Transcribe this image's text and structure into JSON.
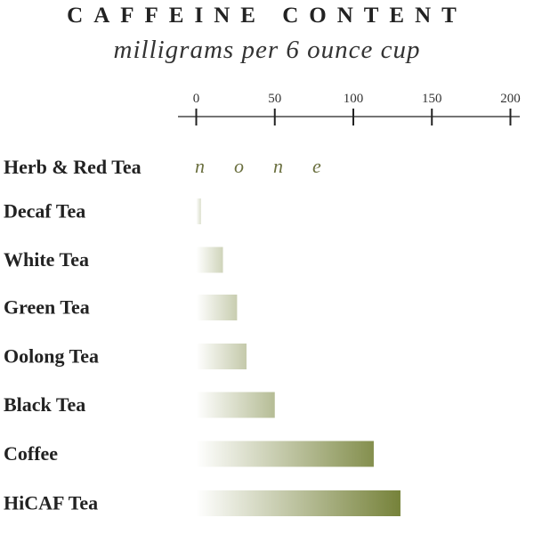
{
  "chart_data": {
    "type": "bar",
    "orientation": "horizontal",
    "title": "CAFFEINE CONTENT",
    "subtitle": "milligrams per 6 ounce cup",
    "categories": [
      "Herb & Red Tea",
      "Decaf Tea",
      "White Tea",
      "Green Tea",
      "Oolong Tea",
      "Black Tea",
      "Coffee",
      "HiCAF Tea"
    ],
    "values": [
      0,
      3,
      17,
      26,
      32,
      50,
      113,
      130
    ],
    "annotations": [
      {
        "category": "Herb & Red Tea",
        "text": "none"
      }
    ],
    "xticks": [
      0,
      50,
      100,
      150,
      200
    ],
    "xlim": [
      0,
      200
    ],
    "axis_position": "top",
    "grid": false,
    "colors": {
      "bar_start": "#ffffff",
      "bar_end": "#76823a",
      "text": "#222222"
    }
  }
}
